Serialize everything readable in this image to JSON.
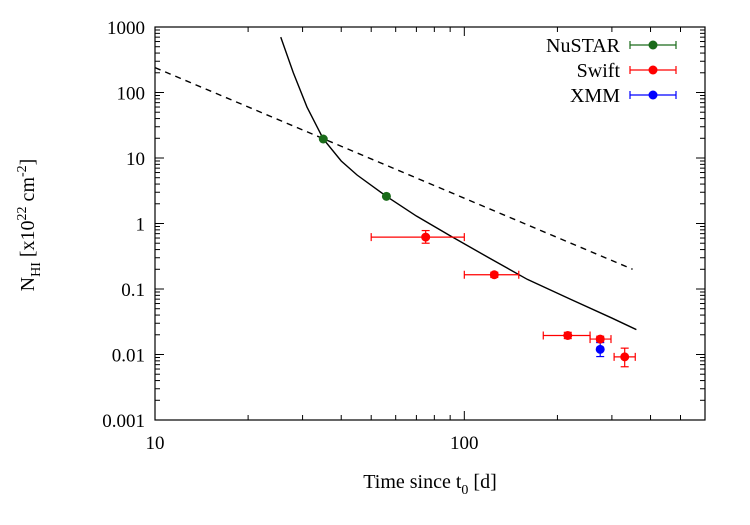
{
  "chart_data": {
    "type": "scatter",
    "title": "",
    "xlabel": {
      "main": "Time since t",
      "sub": "0",
      "tail": " [d]"
    },
    "ylabel": {
      "main": "N",
      "sub": "HI",
      "mid": " [x10",
      "sup1": "22",
      "mid2": " cm",
      "sup2": "-2",
      "tail": "]"
    },
    "x_scale": "log",
    "y_scale": "log",
    "xlim": [
      10,
      600
    ],
    "ylim": [
      0.001,
      1000
    ],
    "x_ticks": [
      {
        "value": 10,
        "label": "10"
      },
      {
        "value": 100,
        "label": "100"
      }
    ],
    "y_ticks": [
      {
        "value": 0.001,
        "label": "0.001"
      },
      {
        "value": 0.01,
        "label": "0.01"
      },
      {
        "value": 0.1,
        "label": "0.1"
      },
      {
        "value": 1,
        "label": "1"
      },
      {
        "value": 10,
        "label": "10"
      },
      {
        "value": 100,
        "label": "100"
      },
      {
        "value": 1000,
        "label": "1000"
      }
    ],
    "grid": false,
    "legend_position": "top-right",
    "series": [
      {
        "name": "NuSTAR",
        "color": "#1a6b1a",
        "points": [
          {
            "x": 35,
            "y": 19.5
          },
          {
            "x": 56,
            "y": 2.6
          }
        ]
      },
      {
        "name": "Swift",
        "color": "#ff0000",
        "points": [
          {
            "x": 75,
            "y": 0.62,
            "xerr": [
              50,
              100
            ],
            "yerr": [
              0.5,
              0.78
            ]
          },
          {
            "x": 125,
            "y": 0.165,
            "xerr": [
              100,
              150
            ],
            "yerr": [
              0.15,
              0.18
            ]
          },
          {
            "x": 216,
            "y": 0.0195,
            "xerr": [
              180,
              255
            ],
            "yerr": [
              0.0175,
              0.0218
            ]
          },
          {
            "x": 275,
            "y": 0.0172,
            "xerr": [
              255,
              298
            ],
            "yerr": [
              0.0155,
              0.019
            ]
          },
          {
            "x": 330,
            "y": 0.0092,
            "xerr": [
              305,
              357
            ],
            "yerr": [
              0.0065,
              0.0125
            ]
          }
        ]
      },
      {
        "name": "XMM",
        "color": "#0000ff",
        "points": [
          {
            "x": 275,
            "y": 0.012,
            "yerr": [
              0.0093,
              0.0152
            ]
          }
        ]
      }
    ],
    "curves": [
      {
        "style": "solid",
        "points": [
          [
            25.5,
            700
          ],
          [
            28,
            200
          ],
          [
            31,
            60
          ],
          [
            35,
            19.5
          ],
          [
            40,
            9
          ],
          [
            45,
            5.5
          ],
          [
            56,
            2.6
          ],
          [
            70,
            1.3
          ],
          [
            90,
            0.65
          ],
          [
            120,
            0.3
          ],
          [
            160,
            0.14
          ],
          [
            220,
            0.07
          ],
          [
            300,
            0.036
          ],
          [
            360,
            0.024
          ]
        ]
      },
      {
        "style": "dashed",
        "points": [
          [
            10,
            240
          ],
          [
            350,
            0.2
          ]
        ]
      }
    ]
  }
}
